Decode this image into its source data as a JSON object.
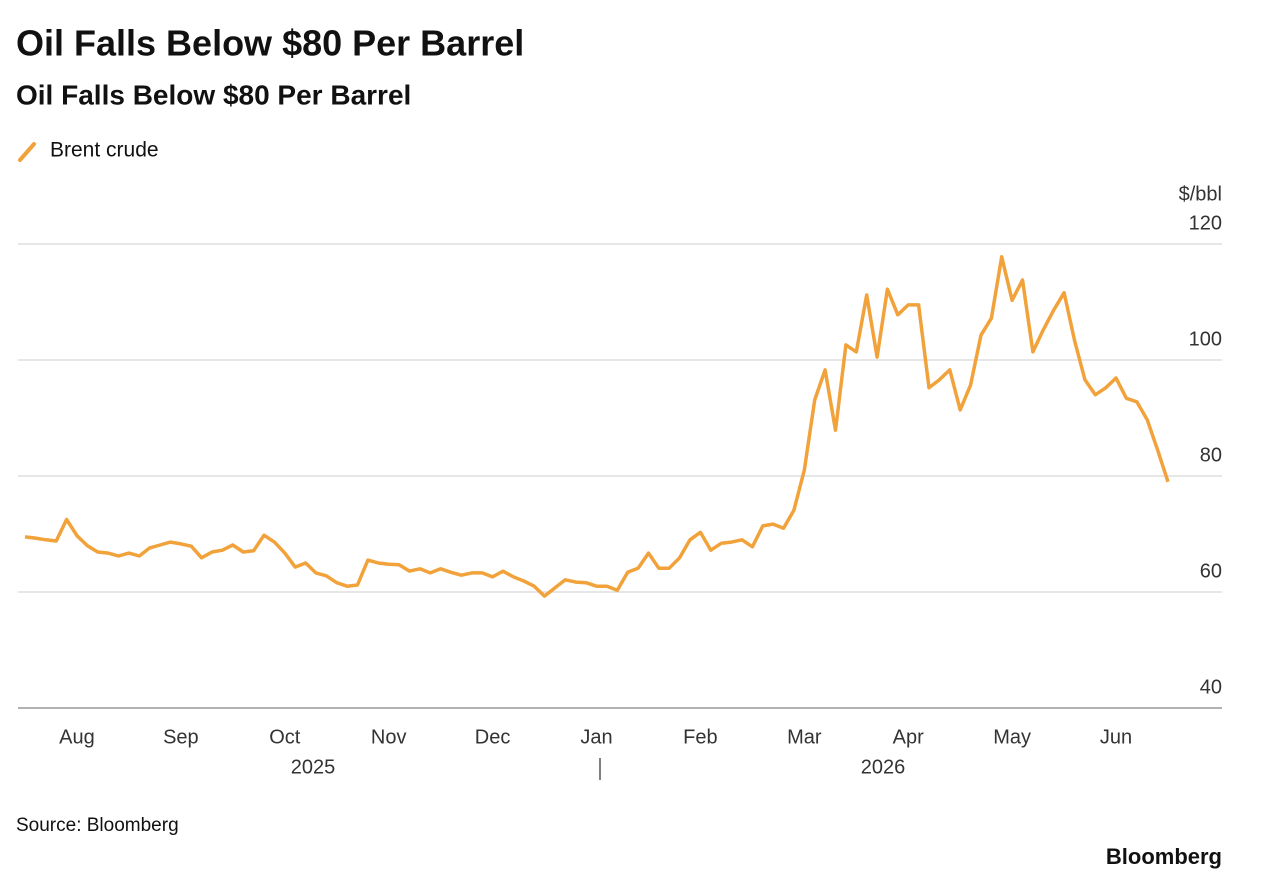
{
  "chart_data": {
    "type": "line",
    "title": "Oil Falls Below $80 Per Barrel",
    "subtitle": "Oil Falls Below $80 Per Barrel",
    "y_axis_label": "$/bbl",
    "source": "Source: Bloomberg",
    "brand": "Bloomberg",
    "year_labels": [
      "2025",
      "2026"
    ],
    "categories": [
      null,
      null,
      null,
      null,
      null,
      "Aug",
      null,
      null,
      null,
      null,
      null,
      null,
      null,
      null,
      null,
      "Sep",
      null,
      null,
      null,
      null,
      null,
      null,
      null,
      null,
      null,
      "Oct",
      null,
      null,
      null,
      null,
      null,
      null,
      null,
      null,
      null,
      "Nov",
      null,
      null,
      null,
      null,
      null,
      null,
      null,
      null,
      null,
      "Dec",
      null,
      null,
      null,
      null,
      null,
      null,
      null,
      null,
      null,
      "Jan",
      null,
      null,
      null,
      null,
      null,
      null,
      null,
      null,
      null,
      "Feb",
      null,
      null,
      null,
      null,
      null,
      null,
      null,
      null,
      null,
      "Mar",
      null,
      null,
      null,
      null,
      null,
      null,
      null,
      null,
      null,
      "Apr",
      null,
      null,
      null,
      null,
      null,
      null,
      null,
      null,
      null,
      "May",
      null,
      null,
      null,
      null,
      null,
      null,
      null,
      null,
      null,
      "Jun",
      null,
      null,
      null,
      null,
      null
    ],
    "series": [
      {
        "name": "Brent crude",
        "color": "#f2a23a",
        "values": [
          69.5,
          69.3,
          69,
          68.8,
          72.5,
          69.7,
          68,
          66.9,
          66.7,
          66.2,
          66.7,
          66.2,
          67.6,
          68.1,
          68.6,
          68.3,
          67.9,
          65.9,
          66.9,
          67.2,
          68.1,
          66.9,
          67.1,
          69.8,
          68.6,
          66.7,
          64.3,
          65,
          63.3,
          62.8,
          61.6,
          61,
          61.2,
          65.5,
          65,
          64.8,
          64.7,
          63.6,
          64,
          63.3,
          64,
          63.4,
          62.9,
          63.3,
          63.3,
          62.6,
          63.6,
          62.6,
          61.9,
          61,
          59.3,
          60.7,
          62.1,
          61.7,
          61.6,
          61,
          61,
          60.3,
          63.4,
          64.1,
          66.7,
          64.1,
          64.1,
          65.9,
          69,
          70.3,
          67.2,
          68.4,
          68.6,
          69,
          67.8,
          71.4,
          71.7,
          71,
          74.1,
          81,
          93.1,
          98.3,
          87.9,
          102.6,
          101.4,
          111.2,
          100.5,
          112.2,
          107.8,
          109.5,
          109.5,
          95.2,
          96.6,
          98.3,
          91.4,
          95.7,
          104.3,
          107.2,
          117.8,
          110.3,
          113.8,
          101.4,
          105.2,
          108.6,
          111.6,
          103.4,
          96.6,
          94,
          95.2,
          96.9,
          93.4,
          92.8,
          89.7,
          84.5,
          79
        ]
      }
    ],
    "ylim": [
      40,
      120
    ],
    "yticks": [
      40,
      60,
      80,
      100,
      120
    ],
    "grid": true
  }
}
